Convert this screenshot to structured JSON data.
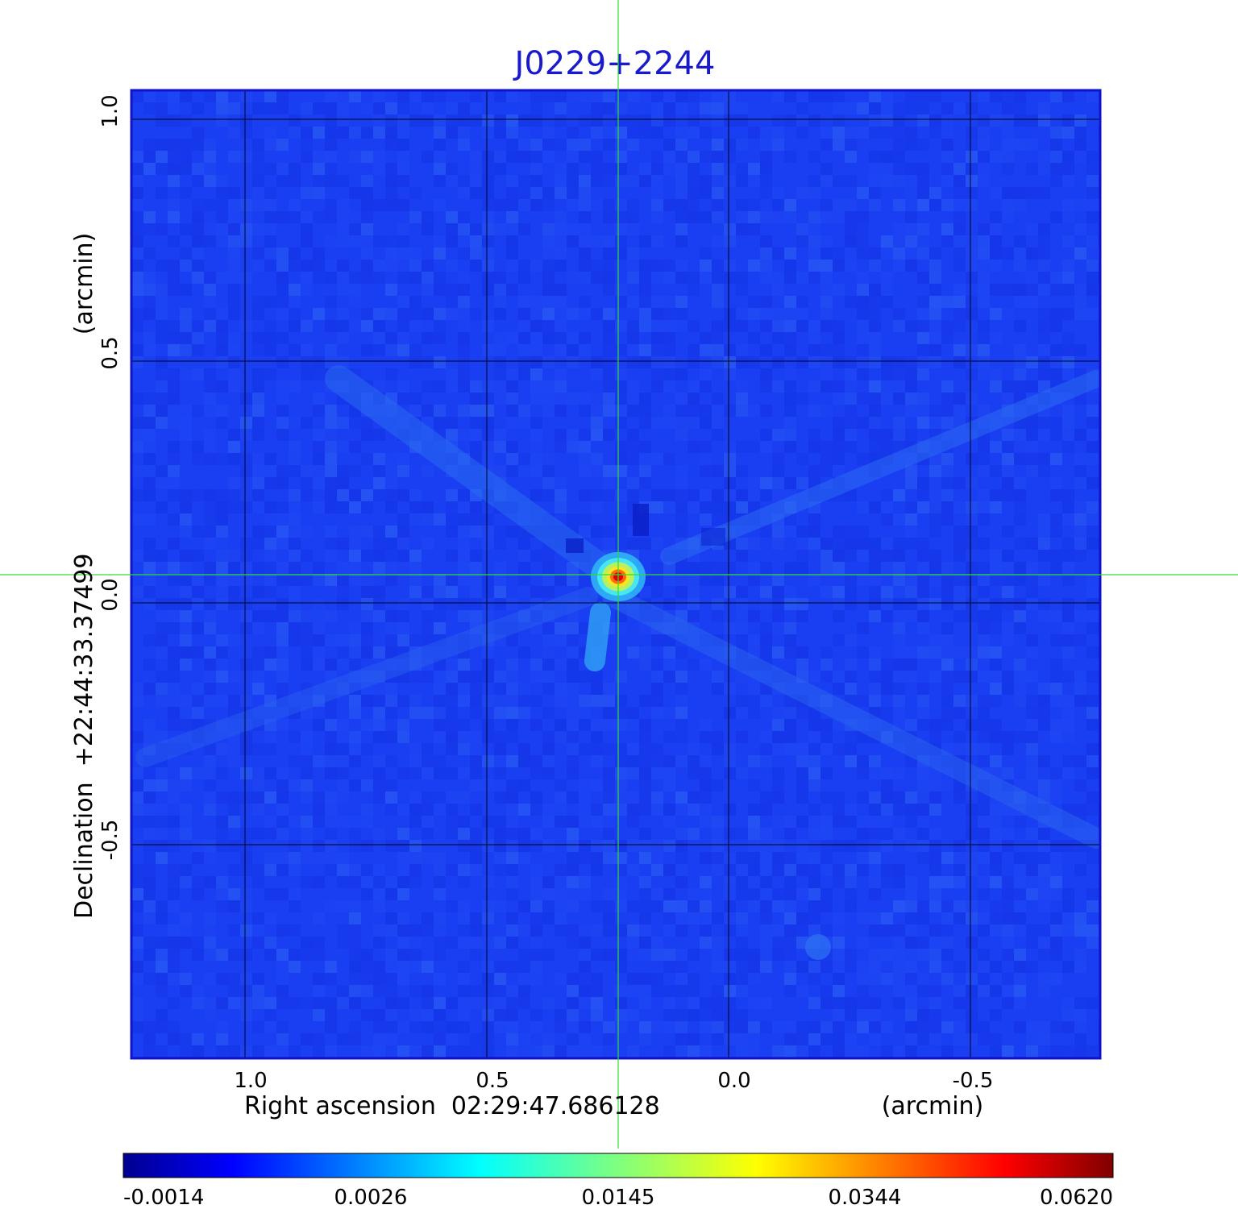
{
  "chart_data": {
    "type": "heatmap",
    "title": "J0229+2244",
    "xlabel": "Right ascension  02:29:47.686128",
    "xunit": "(arcmin)",
    "ylabel": "Declination  +22:44:33.37499",
    "yunit": "(arcmin)",
    "x_ticks": [
      "1.0",
      "0.5",
      "0.0",
      "-0.5"
    ],
    "x_tick_values": [
      1.0,
      0.5,
      0.0,
      -0.5
    ],
    "y_ticks": [
      "1.0",
      "0.5",
      "0.0",
      "-0.5"
    ],
    "y_tick_values": [
      1.0,
      0.5,
      0.0,
      -0.5
    ],
    "xlim": [
      1.235,
      -0.765
    ],
    "ylim": [
      -0.94,
      1.06
    ],
    "grid": true,
    "crosshair": {
      "x": 0.228,
      "y": 0.058,
      "color": "#33dd33"
    },
    "source": {
      "x": 0.23,
      "y": 0.055,
      "peak": 0.062
    },
    "colormap": "jet",
    "colorbar": {
      "ticks": [
        "-0.0014",
        "0.0026",
        "0.0145",
        "0.0344",
        "0.0620"
      ],
      "min": -0.0014,
      "max": 0.062
    },
    "frame_color": "#1111cc"
  }
}
